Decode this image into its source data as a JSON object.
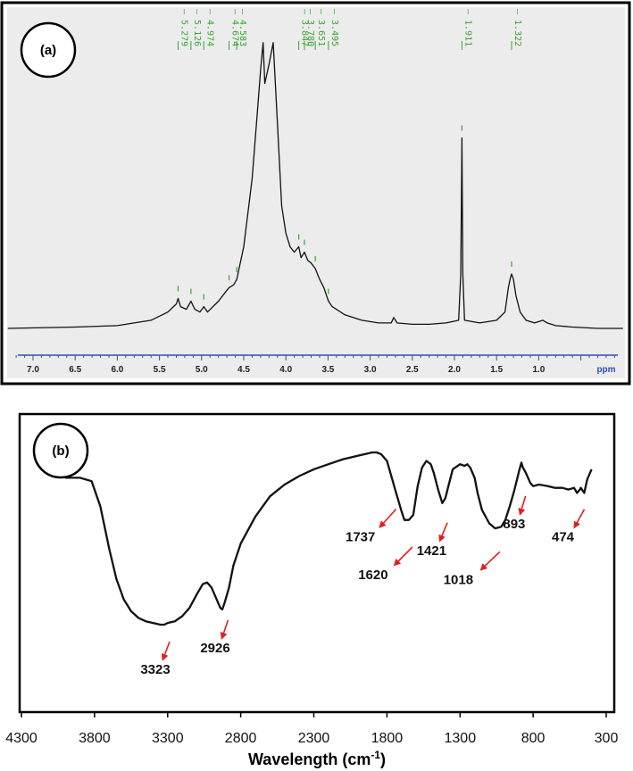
{
  "panel_a_label": "(a)",
  "panel_b_label": "(b)",
  "colors": {
    "nmr_background": "#ececec",
    "nmr_peak_label": "#3aa332",
    "nmr_axis": "#3050b0",
    "ir_arrow": "#e02020",
    "trace": "#111111"
  },
  "chart_data": [
    {
      "type": "line",
      "title": "",
      "xlabel": "",
      "ylabel": "",
      "x_unit_label": "ppm",
      "xlim": [
        7.3,
        0.0
      ],
      "x_reversed": true,
      "x_ticks": [
        "7.0",
        "6.5",
        "6.0",
        "5.5",
        "5.0",
        "4.5",
        "4.0",
        "3.5",
        "3.0",
        "2.5",
        "2.0",
        "1.5",
        "1.0"
      ],
      "peak_labels": [
        "5.279",
        "5.126",
        "4.974",
        "4.674",
        "4.583",
        "3.847",
        "3.780",
        "3.651",
        "3.495",
        "1.911",
        "1.322"
      ],
      "series": [
        {
          "x": [
            7.3,
            6.5,
            6.0,
            5.6,
            5.4,
            5.3,
            5.279,
            5.25,
            5.18,
            5.126,
            5.08,
            5.02,
            4.974,
            4.93,
            4.8,
            4.7,
            4.674,
            4.62,
            4.583,
            4.5,
            4.4,
            4.35,
            4.3,
            4.27,
            4.25,
            4.2,
            4.15,
            4.1,
            4.05,
            4.0,
            3.95,
            3.9,
            3.847,
            3.82,
            3.78,
            3.74,
            3.7,
            3.651,
            3.6,
            3.55,
            3.495,
            3.45,
            3.3,
            3.1,
            2.9,
            2.75,
            2.72,
            2.68,
            2.5,
            2.3,
            2.1,
            1.95,
            1.925,
            1.911,
            1.9,
            1.88,
            1.7,
            1.5,
            1.4,
            1.36,
            1.34,
            1.322,
            1.3,
            1.27,
            1.22,
            1.15,
            1.05,
            0.95,
            0.9,
            0.8,
            0.6,
            0.3,
            0.0
          ],
          "y": [
            0.0,
            0.005,
            0.01,
            0.03,
            0.06,
            0.09,
            0.11,
            0.08,
            0.07,
            0.1,
            0.07,
            0.06,
            0.08,
            0.06,
            0.1,
            0.14,
            0.15,
            0.16,
            0.18,
            0.3,
            0.55,
            0.75,
            0.95,
            1.05,
            0.9,
            0.97,
            1.05,
            0.75,
            0.45,
            0.35,
            0.3,
            0.28,
            0.3,
            0.26,
            0.28,
            0.25,
            0.24,
            0.22,
            0.18,
            0.15,
            0.1,
            0.08,
            0.05,
            0.03,
            0.02,
            0.02,
            0.04,
            0.02,
            0.015,
            0.015,
            0.02,
            0.03,
            0.2,
            0.7,
            0.2,
            0.03,
            0.02,
            0.03,
            0.06,
            0.15,
            0.18,
            0.2,
            0.18,
            0.12,
            0.06,
            0.03,
            0.02,
            0.03,
            0.02,
            0.01,
            0.005,
            0.0,
            0.0
          ]
        }
      ]
    },
    {
      "type": "line",
      "title": "",
      "xlabel": "Wavelength (cm",
      "xlabel_sup": "-1",
      "xlabel_end": ")",
      "ylabel": "",
      "xlim": [
        4300,
        300
      ],
      "x_reversed": true,
      "x_ticks": [
        "4300",
        "3800",
        "3300",
        "2800",
        "2300",
        "1800",
        "1300",
        "800",
        "300"
      ],
      "annotations": [
        "3323",
        "2926",
        "1737",
        "1620",
        "1421",
        "1018",
        "893",
        "474"
      ],
      "series": [
        {
          "x": [
            4000,
            3900,
            3820,
            3760,
            3700,
            3650,
            3600,
            3550,
            3500,
            3450,
            3400,
            3350,
            3323,
            3300,
            3250,
            3200,
            3150,
            3100,
            3060,
            3030,
            3000,
            2970,
            2940,
            2926,
            2910,
            2880,
            2850,
            2800,
            2700,
            2600,
            2500,
            2400,
            2300,
            2200,
            2100,
            2000,
            1950,
            1900,
            1870,
            1840,
            1800,
            1760,
            1737,
            1720,
            1700,
            1680,
            1650,
            1620,
            1590,
            1560,
            1530,
            1500,
            1480,
            1450,
            1421,
            1400,
            1380,
            1350,
            1300,
            1270,
            1250,
            1230,
            1200,
            1180,
            1150,
            1100,
            1060,
            1018,
            990,
            960,
            930,
            910,
            893,
            880,
            870,
            850,
            820,
            800,
            760,
            700,
            650,
            600,
            560,
            520,
            500,
            480,
            474,
            450,
            430,
            400
          ],
          "y": [
            0.13,
            0.13,
            0.15,
            0.3,
            0.55,
            0.73,
            0.85,
            0.92,
            0.96,
            0.98,
            0.99,
            1.0,
            1.0,
            0.99,
            0.98,
            0.95,
            0.9,
            0.82,
            0.76,
            0.75,
            0.78,
            0.84,
            0.9,
            0.91,
            0.87,
            0.78,
            0.65,
            0.52,
            0.36,
            0.24,
            0.17,
            0.12,
            0.08,
            0.05,
            0.02,
            0.0,
            -0.01,
            -0.02,
            -0.02,
            -0.01,
            0.03,
            0.15,
            0.22,
            0.27,
            0.33,
            0.38,
            0.38,
            0.35,
            0.18,
            0.07,
            0.03,
            0.05,
            0.1,
            0.2,
            0.28,
            0.25,
            0.18,
            0.08,
            0.05,
            0.06,
            0.05,
            0.07,
            0.13,
            0.22,
            0.32,
            0.4,
            0.43,
            0.42,
            0.38,
            0.3,
            0.21,
            0.14,
            0.08,
            0.04,
            0.07,
            0.1,
            0.16,
            0.18,
            0.17,
            0.18,
            0.19,
            0.19,
            0.2,
            0.19,
            0.22,
            0.2,
            0.19,
            0.22,
            0.14,
            0.08
          ]
        }
      ]
    }
  ]
}
